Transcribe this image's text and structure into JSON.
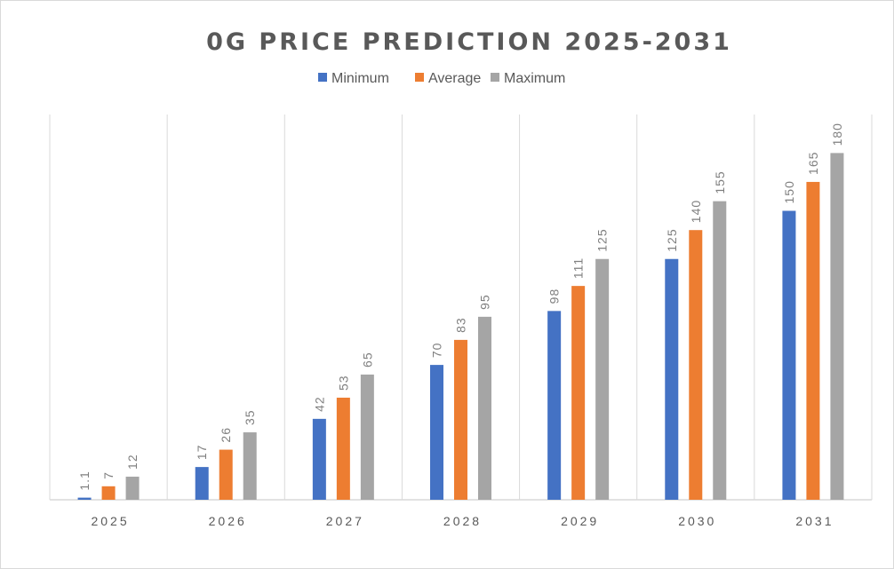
{
  "chart_data": {
    "type": "bar",
    "title": "0G PRICE PREDICTION 2025-2031",
    "xlabel": "",
    "ylabel": "",
    "ylim": [
      0,
      200
    ],
    "grid": "vertical category separators",
    "legend_position": "top",
    "data_labels": true,
    "data_label_orientation": "rotated vertical",
    "categories": [
      "2025",
      "2026",
      "2027",
      "2028",
      "2029",
      "2030",
      "2031"
    ],
    "series": [
      {
        "name": "Minimum",
        "color": "#4472c4",
        "values": [
          1.1,
          17,
          42,
          70,
          98,
          125,
          150
        ],
        "labels": [
          "1.1",
          "17",
          "42",
          "70",
          "98",
          "125",
          "150"
        ]
      },
      {
        "name": "Average",
        "color": "#ed7d31",
        "values": [
          7,
          26,
          53,
          83,
          111,
          140,
          165
        ],
        "labels": [
          "7",
          "26",
          "53",
          "83",
          "111",
          "140",
          "165"
        ]
      },
      {
        "name": "Maximum",
        "color": "#a5a5a5",
        "values": [
          12,
          35,
          65,
          95,
          125,
          155,
          180
        ],
        "labels": [
          "12",
          "35",
          "65",
          "95",
          "125",
          "155",
          "180"
        ]
      }
    ]
  }
}
